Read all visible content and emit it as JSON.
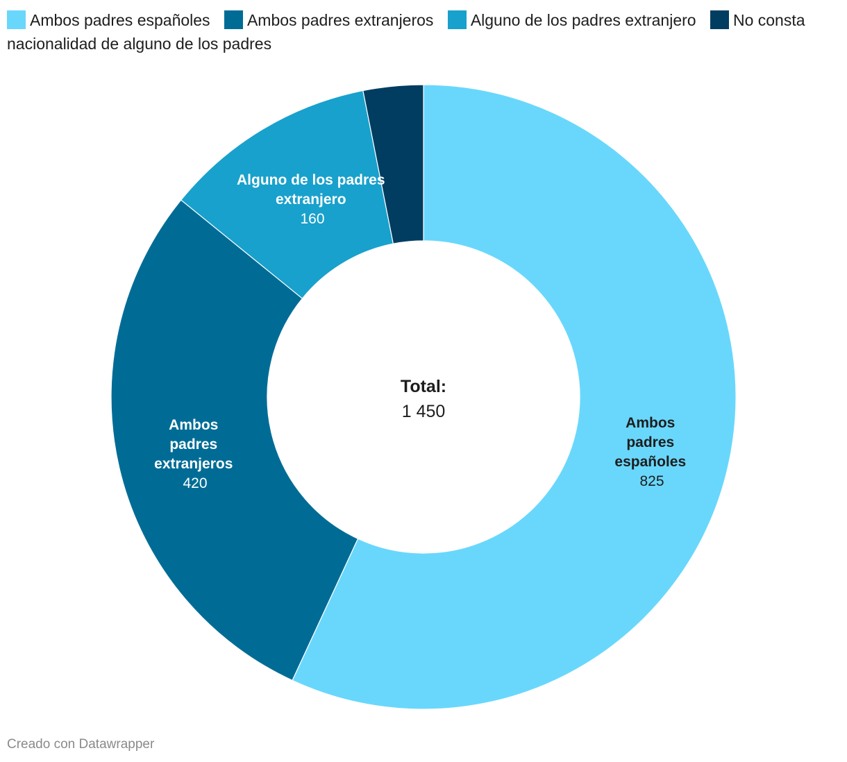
{
  "chart_data": {
    "type": "pie",
    "variant": "donut",
    "categories": [
      "Ambos padres españoles",
      "Ambos padres extranjeros",
      "Alguno de los padres extranjero",
      "No consta nacionalidad de alguno de los padres"
    ],
    "values": [
      825,
      420,
      160,
      45
    ],
    "colors": [
      "#69d7fc",
      "#006c96",
      "#18a1cc",
      "#003d60"
    ],
    "slice_labels": [
      {
        "lines": [
          "Ambos",
          "padres",
          "españoles"
        ],
        "value": "825",
        "text_color": "#1d1d1d"
      },
      {
        "lines": [
          "Ambos",
          "padres",
          "extranjeros"
        ],
        "value": "420",
        "text_color": "#ffffff"
      },
      {
        "lines": [
          "Alguno de los padres",
          "extranjero"
        ],
        "value": "160",
        "text_color": "#ffffff"
      }
    ],
    "center": {
      "title": "Total:",
      "value": "1 450"
    },
    "legend_position": "top-left"
  },
  "legend": {
    "items": [
      {
        "label": "Ambos padres españoles",
        "color": "#69d7fc"
      },
      {
        "label": "Ambos padres extranjeros",
        "color": "#006c96"
      },
      {
        "label": "Alguno de los padres extranjero",
        "color": "#18a1cc"
      },
      {
        "label": "No consta nacionalidad de alguno de los padres",
        "color": "#003d60"
      }
    ]
  },
  "footer": {
    "credit": "Creado con Datawrapper"
  }
}
